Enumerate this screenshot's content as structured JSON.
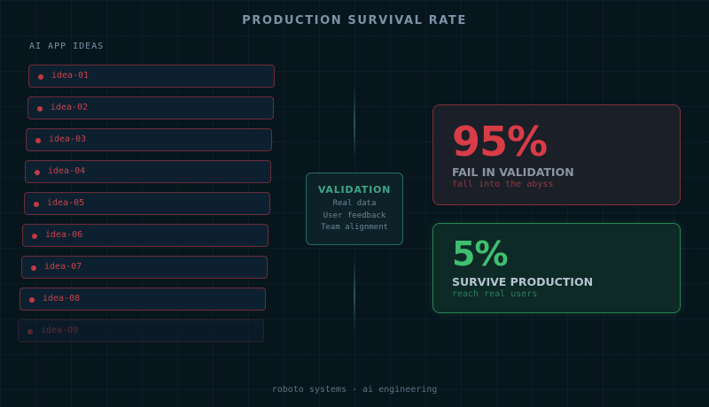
{
  "title": "PRODUCTION SURVIVAL RATE",
  "ideas": {
    "label": "AI APP IDEAS",
    "items": [
      "idea-01",
      "idea-02",
      "idea-03",
      "idea-04",
      "idea-05",
      "idea-06",
      "idea-07",
      "idea-08",
      "idea-09"
    ]
  },
  "validation": {
    "title": "VALIDATION",
    "items": [
      "Real data",
      "User feedback",
      "Team alignment"
    ]
  },
  "fail": {
    "percent": "95%",
    "heading": "FAIL IN VALIDATION",
    "subtext": "fall into the abyss",
    "color": "#d83c46"
  },
  "survive": {
    "percent": "5%",
    "heading": "SURVIVE PRODUCTION",
    "subtext": "reach real users",
    "color": "#3fc070"
  },
  "footer": "roboto systems · ai engineering"
}
